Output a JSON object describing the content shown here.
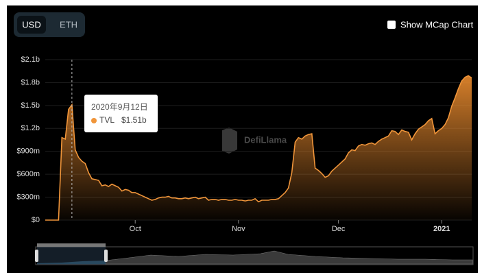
{
  "chart_data": {
    "type": "area",
    "categories": [
      null,
      null,
      null,
      null,
      null,
      null,
      null,
      null,
      null,
      null,
      null,
      null,
      null,
      null,
      null,
      null,
      null,
      null,
      null,
      null,
      null,
      null,
      null,
      null,
      null,
      null,
      null,
      "Oct",
      null,
      null,
      null,
      null,
      null,
      null,
      null,
      null,
      null,
      null,
      null,
      null,
      null,
      null,
      null,
      null,
      null,
      null,
      null,
      null,
      null,
      null,
      null,
      null,
      null,
      null,
      null,
      null,
      null,
      null,
      "Nov",
      null,
      null,
      null,
      null,
      null,
      null,
      null,
      null,
      null,
      null,
      null,
      null,
      null,
      null,
      null,
      null,
      null,
      null,
      null,
      null,
      null,
      null,
      null,
      null,
      null,
      null,
      null,
      null,
      null,
      "Dec",
      null,
      null,
      null,
      null,
      null,
      null,
      null,
      null,
      null,
      null,
      null,
      null,
      null,
      null,
      null,
      null,
      null,
      null,
      null,
      null,
      null,
      null,
      null,
      null,
      null,
      null,
      null,
      null,
      null,
      null,
      "2021",
      null,
      null,
      null,
      null,
      null,
      null,
      null,
      null,
      null
    ],
    "series": [
      {
        "name": "TVL",
        "color": "#f0953a",
        "values": [
          0,
          0,
          0,
          0,
          0,
          1080000000,
          1060000000,
          1450000000,
          1510000000,
          920000000,
          820000000,
          770000000,
          740000000,
          620000000,
          540000000,
          530000000,
          520000000,
          450000000,
          460000000,
          440000000,
          470000000,
          450000000,
          430000000,
          380000000,
          400000000,
          390000000,
          360000000,
          360000000,
          340000000,
          320000000,
          300000000,
          280000000,
          260000000,
          270000000,
          290000000,
          300000000,
          300000000,
          310000000,
          290000000,
          290000000,
          280000000,
          280000000,
          290000000,
          280000000,
          290000000,
          300000000,
          280000000,
          290000000,
          300000000,
          260000000,
          270000000,
          270000000,
          260000000,
          270000000,
          270000000,
          260000000,
          260000000,
          270000000,
          260000000,
          260000000,
          250000000,
          260000000,
          260000000,
          280000000,
          240000000,
          260000000,
          260000000,
          260000000,
          270000000,
          270000000,
          280000000,
          320000000,
          360000000,
          420000000,
          620000000,
          1020000000,
          1080000000,
          1060000000,
          1100000000,
          1120000000,
          1130000000,
          680000000,
          650000000,
          610000000,
          560000000,
          580000000,
          640000000,
          680000000,
          720000000,
          760000000,
          800000000,
          880000000,
          920000000,
          910000000,
          970000000,
          990000000,
          980000000,
          1000000000,
          1010000000,
          990000000,
          1030000000,
          1060000000,
          1080000000,
          1100000000,
          1170000000,
          1160000000,
          1120000000,
          1180000000,
          1160000000,
          1150000000,
          1050000000,
          1130000000,
          1190000000,
          1220000000,
          1250000000,
          1300000000,
          1330000000,
          1130000000,
          1170000000,
          1200000000,
          1250000000,
          1340000000,
          1490000000,
          1600000000,
          1720000000,
          1820000000,
          1870000000,
          1890000000,
          1860000000
        ]
      }
    ],
    "ylim": [
      0,
      2100000000
    ],
    "yticks": [
      {
        "value": 0,
        "label": "$0"
      },
      {
        "value": 300000000,
        "label": "$300m"
      },
      {
        "value": 600000000,
        "label": "$600m"
      },
      {
        "value": 900000000,
        "label": "$900m"
      },
      {
        "value": 1200000000,
        "label": "$1.2b"
      },
      {
        "value": 1500000000,
        "label": "$1.5b"
      },
      {
        "value": 1800000000,
        "label": "$1.8b"
      },
      {
        "value": 2100000000,
        "label": "$2.1b"
      }
    ],
    "grid": true,
    "tooltip": {
      "date": "2020年9月12日",
      "series": "TVL",
      "value": 1510000000,
      "value_label": "$1.51b"
    }
  },
  "ui": {
    "currencies": [
      "USD",
      "ETH"
    ],
    "checkbox_label": "Show MCap Chart",
    "watermark": "DefiLlama"
  }
}
